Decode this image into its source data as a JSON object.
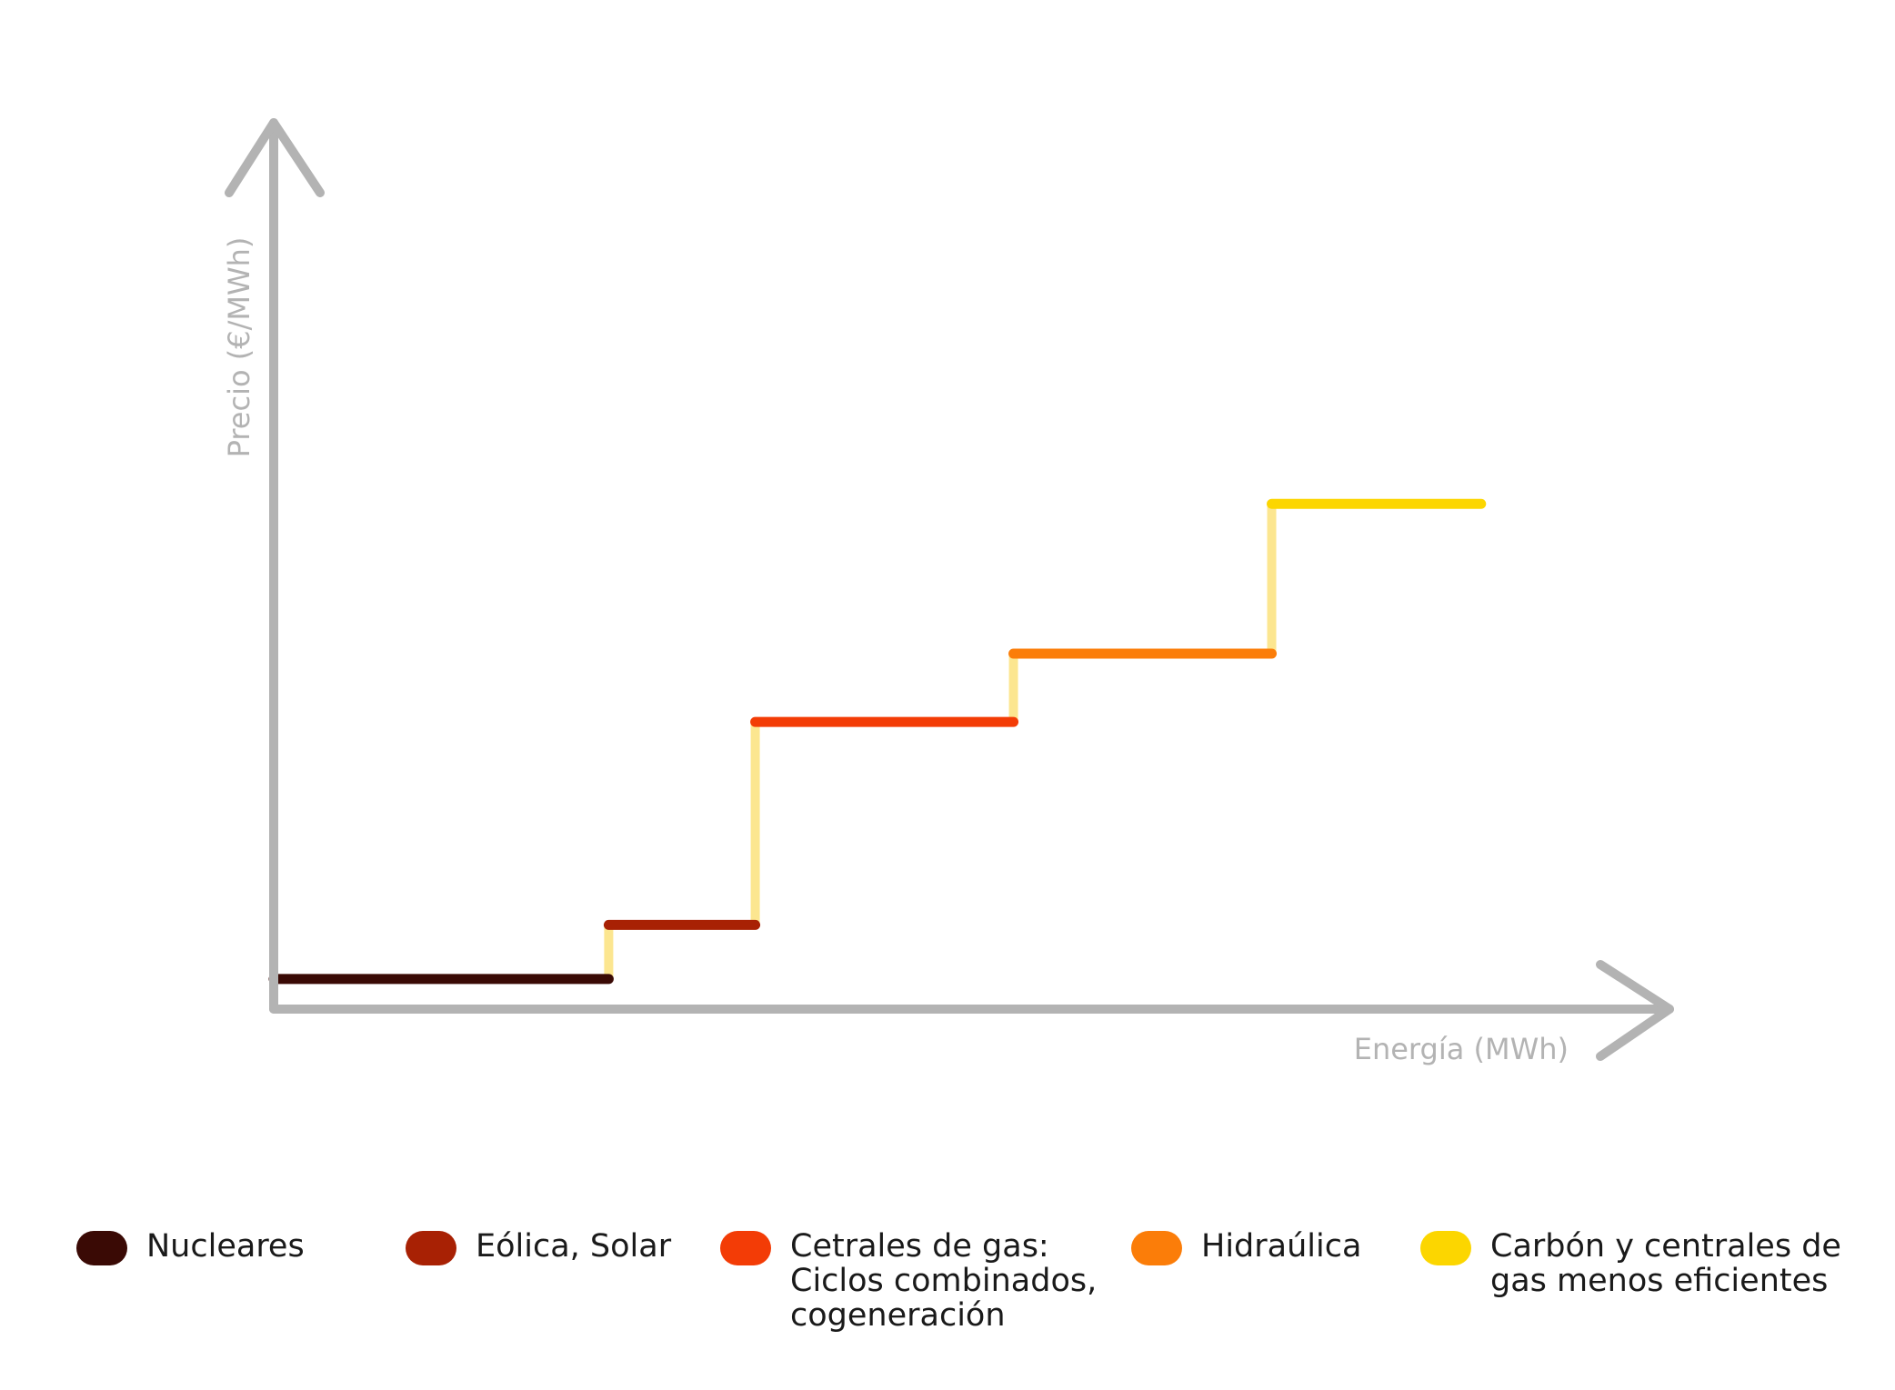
{
  "chart_data": {
    "type": "line",
    "title": "",
    "xlabel": "Energía (MWh)",
    "ylabel": "Precio (€/MWh)",
    "x_ticks": false,
    "y_ticks": false,
    "grid": false,
    "legend_position": "bottom",
    "connector_color": "#fce690",
    "axis_color": "#b3b3b3",
    "xlim": [
      0,
      100
    ],
    "ylim": [
      0,
      100
    ],
    "series": [
      {
        "name": "Nucleares",
        "color": "#3a0a05",
        "x": [
          0,
          24
        ],
        "y": [
          3.4,
          3.4
        ]
      },
      {
        "name": "Eólica, Solar",
        "color": "#a82104",
        "x": [
          24,
          34.5
        ],
        "y": [
          9.5,
          9.5
        ]
      },
      {
        "name": "Cetrales de gas:\nCiclos combinados,\ncogeneración",
        "color": "#f33c06",
        "x": [
          34.5,
          53
        ],
        "y": [
          32.4,
          32.4
        ]
      },
      {
        "name": "Hidraúlica",
        "color": "#fb7d09",
        "x": [
          53,
          71.5
        ],
        "y": [
          40.1,
          40.1
        ]
      },
      {
        "name": "Carbón y centrales de\ngas menos eficientes",
        "color": "#fcd600",
        "x": [
          71.5,
          86.5
        ],
        "y": [
          57,
          57
        ]
      }
    ]
  }
}
